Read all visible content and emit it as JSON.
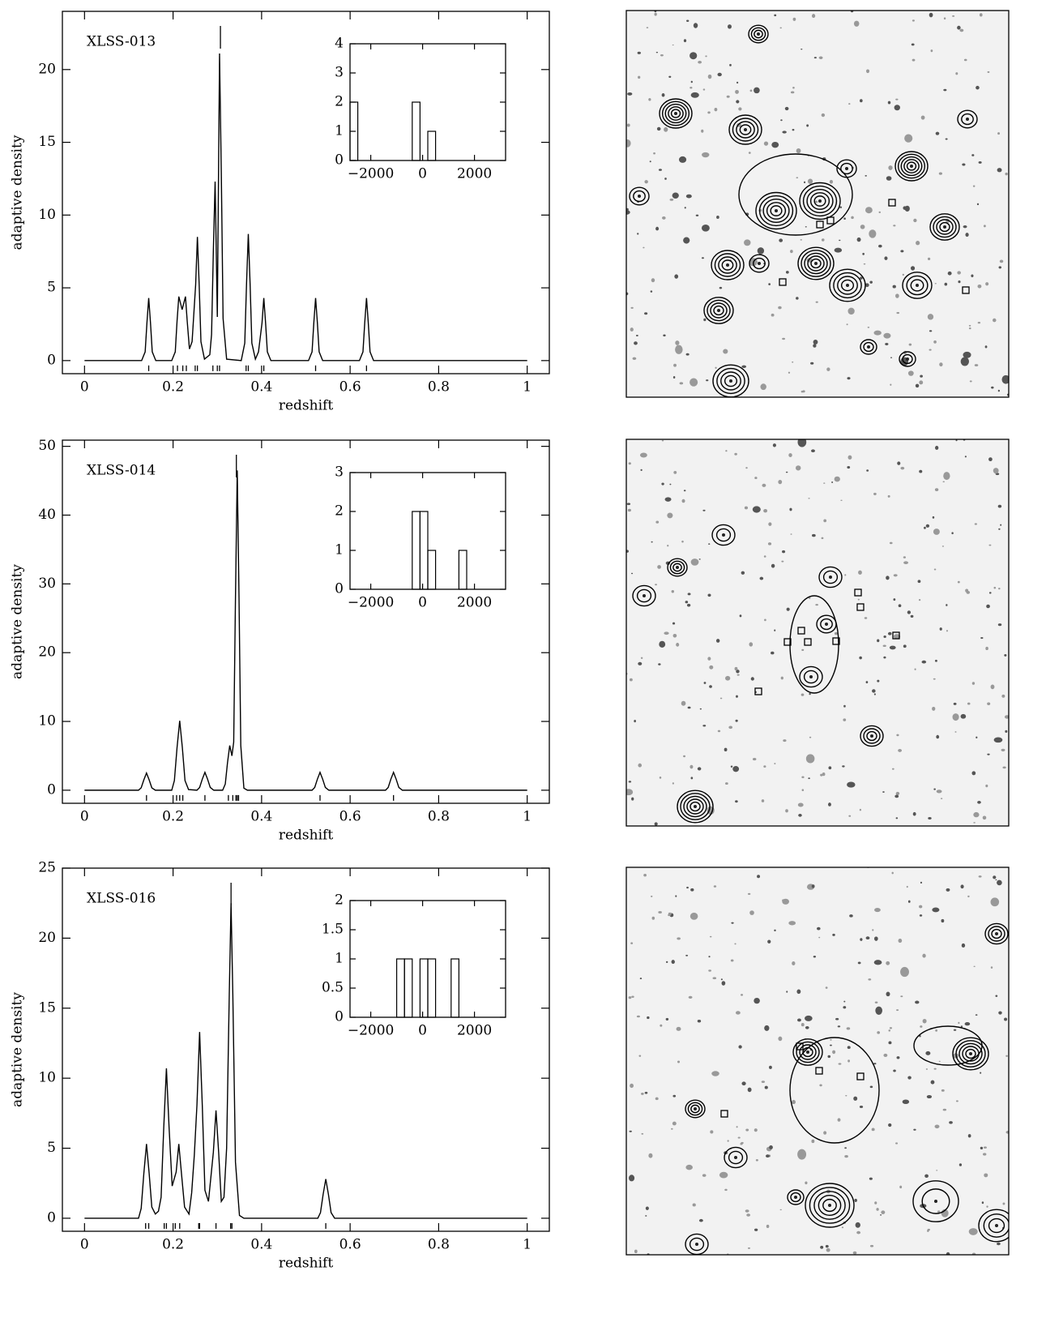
{
  "chart_data": [
    {
      "type": "line",
      "label": "XLSS-013",
      "x_label": "redshift",
      "y_label": "adaptive density",
      "x": [
        0,
        0.129,
        0.137,
        0.141,
        0.145,
        0.149,
        0.153,
        0.161,
        0.197,
        0.205,
        0.209,
        0.213,
        0.2205,
        0.228,
        0.232,
        0.237,
        0.243,
        0.251,
        0.255,
        0.259,
        0.263,
        0.271,
        0.283,
        0.287,
        0.291,
        0.295,
        0.3,
        0.305,
        0.309,
        0.313,
        0.321,
        0.354,
        0.362,
        0.366,
        0.37,
        0.374,
        0.378,
        0.386,
        0.393,
        0.401,
        0.405,
        0.409,
        0.413,
        0.421,
        0.506,
        0.514,
        0.518,
        0.522,
        0.526,
        0.53,
        0.538,
        0.621,
        0.629,
        0.633,
        0.637,
        0.641,
        0.645,
        0.653,
        1
      ],
      "values": [
        0,
        0,
        0.6,
        2.6,
        4.3,
        2.6,
        0.6,
        0,
        0,
        0.6,
        2.7,
        4.4,
        3.5,
        4.4,
        2.7,
        0.8,
        1.3,
        5.2,
        8.5,
        5.2,
        1.3,
        0.1,
        0.4,
        1.8,
        7.5,
        12.3,
        3.0,
        21.1,
        12.9,
        2.9,
        0.1,
        0,
        1.2,
        5.3,
        8.7,
        5.3,
        1.2,
        0.1,
        0.6,
        2.6,
        4.3,
        2.6,
        0.6,
        0,
        0,
        0.6,
        2.6,
        4.3,
        2.6,
        0.6,
        0,
        0,
        0.6,
        2.6,
        4.3,
        2.6,
        0.6,
        0,
        0
      ],
      "galaxy_redshifts": [
        0.145,
        0.21,
        0.222,
        0.23,
        0.25,
        0.255,
        0.29,
        0.3,
        0.305,
        0.365,
        0.37,
        0.405,
        0.522,
        0.637
      ],
      "cluster_redshift": 0.307,
      "xlim": [
        -0.05,
        1.05
      ],
      "ylim": [
        -0.9,
        24
      ],
      "xticks": [
        0,
        0.2,
        0.4,
        0.6,
        0.8,
        1
      ],
      "yticks": [
        0,
        5,
        10,
        15,
        20
      ],
      "color": "#000000"
    },
    {
      "type": "histogram",
      "bins": [
        -2800,
        -2500,
        -2200,
        -1900,
        -1600,
        -1300,
        -1000,
        -700,
        -400,
        -100,
        200,
        500,
        800,
        1100,
        1400,
        1700,
        2000,
        2300,
        2600,
        2900,
        3200
      ],
      "values": [
        2,
        0,
        0,
        0,
        0,
        0,
        0,
        0,
        2,
        0,
        1,
        0,
        0,
        0,
        0,
        0,
        0,
        0,
        0,
        0
      ],
      "xlim": [
        -2800,
        3200
      ],
      "ylim": [
        0,
        4
      ],
      "xticks": [
        {
          "value": -2000,
          "label": "−2000"
        },
        0,
        2000
      ],
      "yticks": [
        0,
        1,
        2,
        3,
        4
      ]
    },
    {
      "type": "line",
      "label": "XLSS-014",
      "x_label": "redshift",
      "y_label": "adaptive density",
      "x": [
        0,
        0.122,
        0.128,
        0.134,
        0.14,
        0.146,
        0.152,
        0.16,
        0.197,
        0.203,
        0.209,
        0.215,
        0.221,
        0.227,
        0.235,
        0.254,
        0.26,
        0.266,
        0.272,
        0.278,
        0.284,
        0.292,
        0.312,
        0.318,
        0.323,
        0.328,
        0.333,
        0.337,
        0.341,
        0.345,
        0.349,
        0.353,
        0.36,
        0.368,
        0.514,
        0.52,
        0.526,
        0.532,
        0.538,
        0.544,
        0.552,
        0.68,
        0.686,
        0.692,
        0.698,
        0.704,
        0.71,
        0.718,
        1
      ],
      "values": [
        0,
        0,
        0.35,
        1.5,
        2.5,
        1.5,
        0.35,
        0,
        0,
        1.4,
        6.2,
        10.1,
        6.2,
        1.4,
        0.1,
        0,
        0.4,
        1.6,
        2.6,
        1.6,
        0.4,
        0,
        0,
        0.9,
        4.0,
        6.5,
        5.0,
        7.0,
        28,
        46.5,
        28,
        6.5,
        0.3,
        0,
        0,
        0.4,
        1.6,
        2.6,
        1.6,
        0.4,
        0,
        0,
        0.4,
        1.6,
        2.6,
        1.6,
        0.4,
        0,
        0
      ],
      "galaxy_redshifts": [
        0.14,
        0.208,
        0.215,
        0.222,
        0.272,
        0.325,
        0.335,
        0.342,
        0.345,
        0.348,
        0.532,
        0.698
      ],
      "cluster_redshift": 0.343,
      "xlim": [
        -0.05,
        1.05
      ],
      "ylim": [
        -1.9,
        50.9
      ],
      "xticks": [
        0,
        0.2,
        0.4,
        0.6,
        0.8,
        1
      ],
      "yticks": [
        0,
        10,
        20,
        30,
        40,
        50
      ],
      "color": "#000000"
    },
    {
      "type": "histogram",
      "bins": [
        -2800,
        -2500,
        -2200,
        -1900,
        -1600,
        -1300,
        -1000,
        -700,
        -400,
        -100,
        200,
        500,
        800,
        1100,
        1400,
        1700,
        2000,
        2300,
        2600,
        2900,
        3200
      ],
      "values": [
        0,
        0,
        0,
        0,
        0,
        0,
        0,
        0,
        2,
        2,
        1,
        0,
        0,
        0,
        1,
        0,
        0,
        0,
        0,
        0
      ],
      "xlim": [
        -2800,
        3200
      ],
      "ylim": [
        0,
        3
      ],
      "xticks": [
        {
          "value": -2000,
          "label": "−2000"
        },
        0,
        2000
      ],
      "yticks": [
        0,
        1,
        2,
        3
      ]
    },
    {
      "type": "line",
      "label": "XLSS-016",
      "x_label": "redshift",
      "y_label": "adaptive density",
      "x": [
        0,
        0.122,
        0.128,
        0.134,
        0.14,
        0.146,
        0.152,
        0.16,
        0.167,
        0.173,
        0.179,
        0.185,
        0.191,
        0.198,
        0.207,
        0.213,
        0.219,
        0.226,
        0.236,
        0.242,
        0.248,
        0.254,
        0.26,
        0.266,
        0.272,
        0.28,
        0.291,
        0.297,
        0.303,
        0.309,
        0.315,
        0.321,
        0.327,
        0.331,
        0.335,
        0.341,
        0.35,
        0.36,
        0.527,
        0.533,
        0.539,
        0.545,
        0.551,
        0.557,
        0.565,
        1
      ],
      "values": [
        0,
        0,
        0.7,
        3.2,
        5.3,
        3.2,
        0.8,
        0.3,
        0.5,
        1.5,
        6.5,
        10.7,
        6.5,
        2.3,
        3.3,
        5.3,
        3.2,
        0.8,
        0.3,
        1.8,
        4.5,
        8.1,
        13.3,
        8.1,
        2.0,
        1.2,
        4.7,
        7.7,
        4.7,
        1.2,
        1.5,
        5.0,
        16,
        22.5,
        16,
        4,
        0.2,
        0,
        0,
        0.4,
        1.7,
        2.8,
        1.7,
        0.4,
        0,
        0
      ],
      "galaxy_redshifts": [
        0.138,
        0.145,
        0.18,
        0.185,
        0.205,
        0.215,
        0.258,
        0.26,
        0.297,
        0.33,
        0.333,
        0.545
      ],
      "cluster_redshift": 0.331,
      "xlim": [
        -0.05,
        1.05
      ],
      "ylim": [
        -0.93,
        25
      ],
      "xticks": [
        0,
        0.2,
        0.4,
        0.6,
        0.8,
        1
      ],
      "yticks": [
        0,
        5,
        10,
        15,
        20,
        25
      ],
      "color": "#000000"
    },
    {
      "type": "histogram",
      "bins": [
        -2800,
        -2500,
        -2200,
        -1900,
        -1600,
        -1300,
        -1000,
        -700,
        -400,
        -100,
        200,
        500,
        800,
        1100,
        1400,
        1700,
        2000,
        2300,
        2600,
        2900,
        3200
      ],
      "values": [
        0,
        0,
        0,
        0,
        0,
        0,
        1,
        1,
        0,
        1,
        1,
        0,
        0,
        1,
        0,
        0,
        0,
        0,
        0,
        0
      ],
      "xlim": [
        -2800,
        3200
      ],
      "ylim": [
        0,
        2
      ],
      "xticks": [
        {
          "value": -2000,
          "label": "−2000"
        },
        0,
        2000
      ],
      "yticks": [
        0,
        0.5,
        1,
        1.5,
        2
      ]
    }
  ]
}
